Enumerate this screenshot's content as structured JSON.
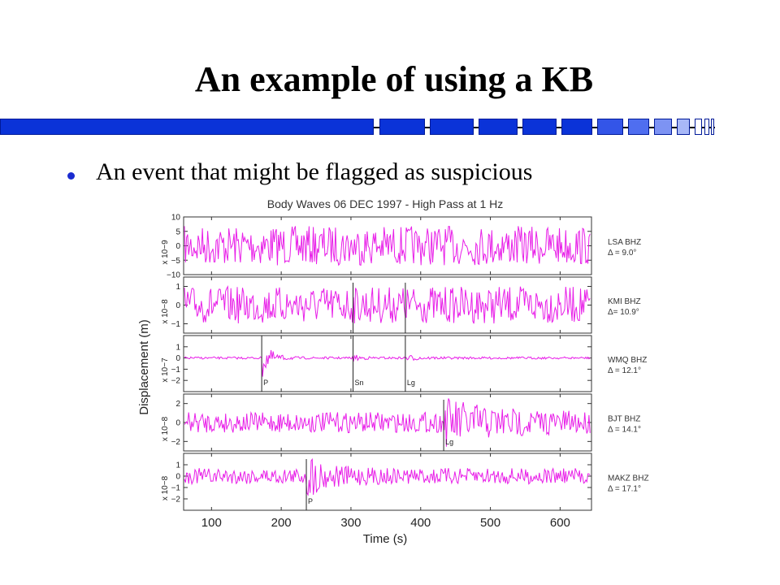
{
  "slide": {
    "title": "An example of using a KB",
    "bullet": "An event that might be flagged as suspicious"
  },
  "colors": {
    "accent_bar": "#0a33d8",
    "waveform": "#e81ee8",
    "bullet": "#1a2bd0"
  },
  "chart_data": {
    "type": "line",
    "title": "Body Waves 06 DEC 1997 - High Pass at 1 Hz",
    "xlabel": "Time (s)",
    "ylabel": "Displacement (m)",
    "xlim": [
      60,
      645
    ],
    "xticks": [
      100,
      200,
      300,
      400,
      500,
      600
    ],
    "grid": false,
    "series": [
      {
        "station": "LSA BHZ",
        "distance": "Δ = 9.0°",
        "scale": "x 10−9",
        "ylim": [
          -10,
          10
        ],
        "yticks": [
          -10,
          -5,
          0,
          5,
          10
        ],
        "picks": []
      },
      {
        "station": "KMI BHZ",
        "distance": "Δ= 10.9°",
        "scale": "x 10−8",
        "ylim": [
          -1.5,
          1.5
        ],
        "yticks": [
          -1,
          0,
          1
        ],
        "picks": [
          {
            "label": "",
            "t": 303
          },
          {
            "label": "",
            "t": 378
          }
        ]
      },
      {
        "station": "WMQ BHZ",
        "distance": "Δ = 12.1°",
        "scale": "x 10−7",
        "ylim": [
          -3,
          2
        ],
        "yticks": [
          -2,
          -1,
          0,
          1
        ],
        "picks": [
          {
            "label": "P",
            "t": 172
          },
          {
            "label": "Sn",
            "t": 303
          },
          {
            "label": "Lg",
            "t": 378
          }
        ]
      },
      {
        "station": "BJT BHZ",
        "distance": "Δ = 14.1°",
        "scale": "x 10−8",
        "ylim": [
          -3,
          3
        ],
        "yticks": [
          -2,
          0,
          2
        ],
        "picks": [
          {
            "label": "Lg",
            "t": 433
          }
        ]
      },
      {
        "station": "MAKZ BHZ",
        "distance": "Δ = 17.1°",
        "scale": "x 10−8",
        "ylim": [
          -3,
          2
        ],
        "yticks": [
          -2,
          -1,
          0,
          1
        ],
        "picks": [
          {
            "label": "P",
            "t": 236
          }
        ]
      }
    ]
  }
}
